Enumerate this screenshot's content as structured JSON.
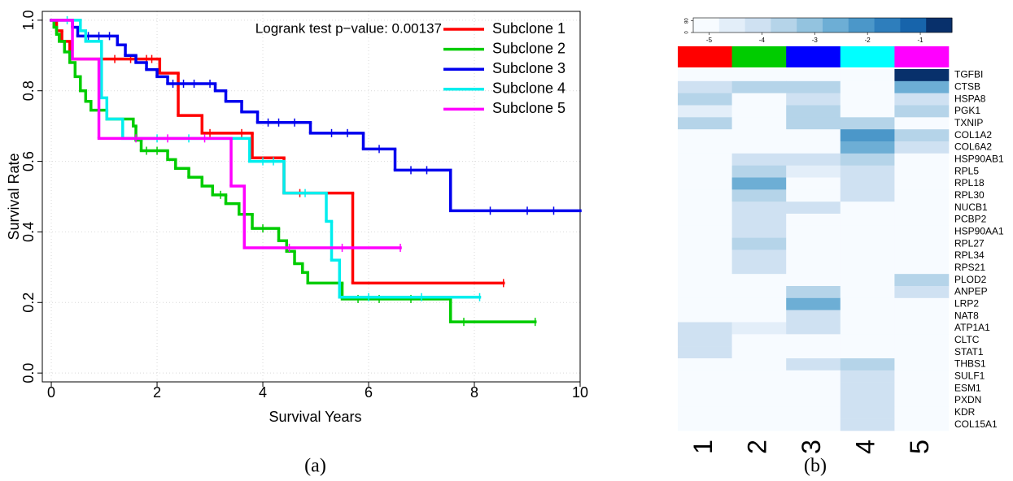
{
  "chart_data": [
    {
      "type": "step",
      "caption": "(a)",
      "xlabel": "Survival Years",
      "ylabel": "Survival Rate",
      "annotation": "Logrank test p−value: 0.00137",
      "xlim": [
        -0.17,
        10
      ],
      "ylim": [
        -0.025,
        1.025
      ],
      "xticks": [
        0,
        2,
        4,
        6,
        8,
        10
      ],
      "yticks": [
        {
          "value": 0,
          "label": "0.0"
        },
        0.2,
        0.4,
        0.6,
        0.8,
        {
          "value": 1,
          "label": "1.0"
        }
      ],
      "grid": true,
      "legend": "topright",
      "series": [
        {
          "name": "Subclone 1",
          "color": "#ff0000",
          "x": [
            0,
            0.1,
            0.2,
            0.35,
            2.05,
            2.4,
            2.85,
            3.8,
            4.4,
            5.7,
            8.55
          ],
          "values": [
            1,
            0.97,
            0.94,
            0.89,
            0.85,
            0.73,
            0.68,
            0.61,
            0.51,
            0.255,
            0.255
          ],
          "censored": [
            1.2,
            1.5,
            1.8,
            1.9,
            3.0,
            3.6,
            4.7,
            8.55
          ]
        },
        {
          "name": "Subclone 2",
          "color": "#00cc00",
          "x": [
            0,
            0.05,
            0.1,
            0.15,
            0.25,
            0.35,
            0.45,
            0.55,
            0.65,
            0.75,
            1.05,
            1.55,
            1.6,
            1.7,
            2.2,
            2.35,
            2.6,
            2.85,
            3.05,
            3.3,
            3.55,
            3.8,
            4.3,
            4.45,
            4.6,
            4.75,
            4.85,
            5.5,
            7.55,
            9.15
          ],
          "values": [
            1,
            0.98,
            0.96,
            0.94,
            0.91,
            0.88,
            0.84,
            0.8,
            0.77,
            0.745,
            0.72,
            0.7,
            0.66,
            0.63,
            0.605,
            0.58,
            0.555,
            0.53,
            0.505,
            0.48,
            0.45,
            0.41,
            0.375,
            0.345,
            0.31,
            0.285,
            0.255,
            0.21,
            0.145,
            0.145
          ],
          "censored": [
            1.8,
            2.0,
            3.2,
            4.0,
            5.8,
            6.2,
            6.8,
            7.8,
            9.15
          ]
        },
        {
          "name": "Subclone 3",
          "color": "#0000ee",
          "x": [
            0,
            0.4,
            0.5,
            1.25,
            1.4,
            1.6,
            1.8,
            2.0,
            2.2,
            3.1,
            3.3,
            3.6,
            3.9,
            4.9,
            5.9,
            6.5,
            7.55,
            10
          ],
          "values": [
            1,
            0.98,
            0.955,
            0.93,
            0.9,
            0.88,
            0.86,
            0.84,
            0.82,
            0.8,
            0.77,
            0.74,
            0.71,
            0.68,
            0.635,
            0.575,
            0.46,
            0.46
          ],
          "censored": [
            0.7,
            0.9,
            1.1,
            2.3,
            2.5,
            2.7,
            3.0,
            4.1,
            4.3,
            4.6,
            5.3,
            5.6,
            6.2,
            6.8,
            7.1,
            8.3,
            9.0,
            9.5
          ]
        },
        {
          "name": "Subclone 4",
          "color": "#00eeee",
          "x": [
            0,
            0.55,
            0.65,
            0.95,
            1.05,
            1.35,
            3.75,
            4.4,
            5.2,
            5.3,
            5.45,
            8.1
          ],
          "values": [
            1,
            0.97,
            0.94,
            0.78,
            0.72,
            0.665,
            0.6,
            0.51,
            0.43,
            0.32,
            0.215,
            0.215
          ],
          "censored": [
            0.3,
            2.0,
            2.6,
            4.0,
            4.2,
            4.8,
            6.0,
            7.0,
            8.1
          ]
        },
        {
          "name": "Subclone 5",
          "color": "#ff00ff",
          "x": [
            0,
            0.4,
            0.9,
            3.4,
            3.65,
            6.6
          ],
          "values": [
            1,
            0.89,
            0.665,
            0.53,
            0.355,
            0.355
          ],
          "censored": [
            1.6,
            2.2,
            2.9,
            4.5,
            5.5,
            6.6
          ]
        }
      ]
    },
    {
      "type": "heatmap",
      "caption": "(b)",
      "columns": [
        "1",
        "2",
        "3",
        "4",
        "5"
      ],
      "column_colors": [
        "#ff0000",
        "#00cc00",
        "#0000ff",
        "#00ffff",
        "#ff00ff"
      ],
      "rows": [
        "TGFBI",
        "CTSB",
        "HSPA8",
        "PGK1",
        "TXNIP",
        "COL1A2",
        "COL6A2",
        "HSP90AB1",
        "RPL5",
        "RPL18",
        "RPL30",
        "NUCB1",
        "PCBP2",
        "HSP90AA1",
        "RPL27",
        "RPL34",
        "RPS21",
        "PLOD2",
        "ANPEP",
        "LRP2",
        "NAT8",
        "ATP1A1",
        "CLTC",
        "STAT1",
        "THBS1",
        "SULF1",
        "ESM1",
        "PXDN",
        "KDR",
        "COL15A1"
      ],
      "values": [
        [
          -5.1,
          -5.1,
          -5.1,
          -5.1,
          -0.65
        ],
        [
          -4.1,
          -3.6,
          -3.6,
          -5.1,
          -2.6
        ],
        [
          -3.6,
          -5.1,
          -4.1,
          -5.1,
          -4.1
        ],
        [
          -4.6,
          -5.1,
          -3.6,
          -5.1,
          -3.6
        ],
        [
          -3.6,
          -5.1,
          -3.6,
          -3.6,
          -5.1
        ],
        [
          -5.1,
          -5.1,
          -5.1,
          -2.1,
          -3.6
        ],
        [
          -5.1,
          -5.1,
          -5.1,
          -2.6,
          -4.1
        ],
        [
          -5.1,
          -4.1,
          -4.1,
          -3.6,
          -5.1
        ],
        [
          -5.1,
          -3.6,
          -4.6,
          -4.1,
          -5.1
        ],
        [
          -5.1,
          -2.6,
          -5.1,
          -4.1,
          -5.1
        ],
        [
          -5.1,
          -3.6,
          -5.1,
          -4.1,
          -5.1
        ],
        [
          -5.1,
          -4.1,
          -4.1,
          -5.1,
          -5.1
        ],
        [
          -5.1,
          -4.1,
          -5.1,
          -5.1,
          -5.1
        ],
        [
          -5.1,
          -4.1,
          -5.1,
          -5.1,
          -5.1
        ],
        [
          -5.1,
          -3.6,
          -5.1,
          -5.1,
          -5.1
        ],
        [
          -5.1,
          -4.1,
          -5.1,
          -5.1,
          -5.1
        ],
        [
          -5.1,
          -4.1,
          -5.1,
          -5.1,
          -5.1
        ],
        [
          -5.1,
          -5.1,
          -5.1,
          -5.1,
          -3.6
        ],
        [
          -5.1,
          -5.1,
          -3.6,
          -5.1,
          -4.1
        ],
        [
          -5.1,
          -5.1,
          -2.6,
          -5.1,
          -5.1
        ],
        [
          -5.1,
          -5.1,
          -4.1,
          -5.1,
          -5.1
        ],
        [
          -4.1,
          -4.6,
          -4.1,
          -5.1,
          -5.1
        ],
        [
          -4.1,
          -5.1,
          -5.1,
          -5.1,
          -5.1
        ],
        [
          -4.1,
          -5.1,
          -5.1,
          -5.1,
          -5.1
        ],
        [
          -5.1,
          -5.1,
          -4.1,
          -3.6,
          -5.1
        ],
        [
          -5.1,
          -5.1,
          -5.1,
          -4.1,
          -5.1
        ],
        [
          -5.1,
          -5.1,
          -5.1,
          -4.1,
          -5.1
        ],
        [
          -5.1,
          -5.1,
          -5.1,
          -4.1,
          -5.1
        ],
        [
          -5.1,
          -5.1,
          -5.1,
          -4.1,
          -5.1
        ],
        [
          -5.1,
          -5.1,
          -5.1,
          -4.1,
          -5.1
        ]
      ],
      "colorscale": {
        "lim": [
          -5.3,
          -0.4
        ],
        "ticks": [
          -5,
          -4,
          -3,
          -2,
          -1
        ],
        "colors": [
          "#f7fbff",
          "#e3eef9",
          "#cfe1f2",
          "#b5d4e9",
          "#93c3df",
          "#6daed5",
          "#4b97c9",
          "#2e7ebc",
          "#1764ab",
          "#08306b"
        ]
      },
      "count_lim": [
        0,
        100
      ],
      "count_ticks": [
        0,
        80
      ]
    }
  ]
}
